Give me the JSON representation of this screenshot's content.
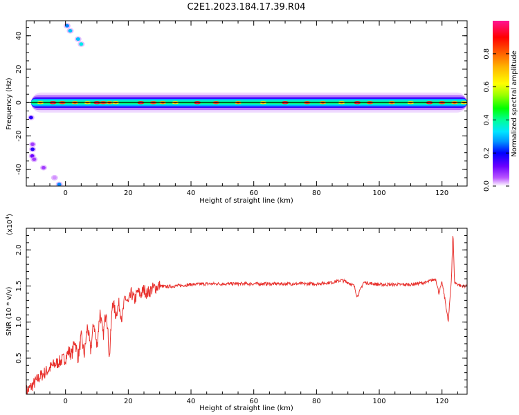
{
  "title": "C2E1.2023.184.17.39.R04",
  "colors": {
    "snr_line": "#e8302c",
    "axis": "#000000",
    "colormap": [
      "#ffffff",
      "#ba55ff",
      "#6a00ff",
      "#0000ff",
      "#0096ff",
      "#00e6ff",
      "#00ff96",
      "#00ff00",
      "#9aff00",
      "#ffff00",
      "#ffb400",
      "#ff5000",
      "#ff0000",
      "#ff1493"
    ]
  },
  "chart_data": [
    {
      "type": "heatmap",
      "xlabel": "Height of straight line (km)",
      "ylabel": "Frequency (Hz)",
      "xlim": [
        -12.5,
        128
      ],
      "ylim": [
        -50,
        49
      ],
      "xticks": [
        "0",
        "20",
        "40",
        "60",
        "80",
        "100",
        "120"
      ],
      "yticks": [
        "-40",
        "-20",
        "0",
        "20",
        "40"
      ],
      "colorbar": {
        "label": "Normalized spectral amplitude",
        "range": [
          0,
          1
        ],
        "ticks": [
          "0.0",
          "0.2",
          "0.4",
          "0.6",
          "0.8"
        ]
      },
      "band_center_hz": 0,
      "hot_spots_km": [
        -8,
        -4,
        -1,
        3,
        7,
        10,
        12,
        14,
        16,
        24,
        28,
        31,
        35,
        42,
        48,
        55,
        63,
        70,
        77,
        82,
        88,
        93,
        97,
        104,
        110,
        116,
        120,
        124,
        127
      ],
      "scatter_blobs": [
        {
          "x": -11,
          "y": -9,
          "v": 0.2
        },
        {
          "x": -10.5,
          "y": -25,
          "v": 0.1
        },
        {
          "x": -10.5,
          "y": -28,
          "v": 0.2
        },
        {
          "x": -10.6,
          "y": -32,
          "v": 0.15
        },
        {
          "x": -10,
          "y": -34,
          "v": 0.1
        },
        {
          "x": -7,
          "y": -39,
          "v": 0.1
        },
        {
          "x": -3.5,
          "y": -45,
          "v": 0.05
        },
        {
          "x": -2,
          "y": -49,
          "v": 0.3
        },
        {
          "x": 0.5,
          "y": 46,
          "v": 0.3
        },
        {
          "x": 1.5,
          "y": 43,
          "v": 0.35
        },
        {
          "x": 4,
          "y": 38,
          "v": 0.35
        },
        {
          "x": 5,
          "y": 35,
          "v": 0.4
        }
      ]
    },
    {
      "type": "line",
      "xlabel": "Height of straight line (km)",
      "ylabel": "SNR (10 * v/v)",
      "yscale_label": "(x10",
      "yscale_exponent": "4",
      "xlim": [
        -12.5,
        128
      ],
      "ylim": [
        0,
        2.3
      ],
      "xticks": [
        "0",
        "20",
        "40",
        "60",
        "80",
        "100",
        "120"
      ],
      "yticks": [
        "0.5",
        "1.0",
        "1.5",
        "2.0"
      ],
      "series": [
        {
          "x": [
            -12,
            -10,
            -8,
            -6,
            -4,
            -2,
            0,
            1,
            2,
            3,
            4,
            5,
            6,
            7,
            8,
            9,
            10,
            11,
            12,
            13,
            14,
            15,
            16,
            17,
            18,
            19,
            20,
            21,
            22,
            23,
            24,
            25,
            26,
            28,
            30,
            32,
            35,
            40,
            45,
            50,
            60,
            70,
            80,
            85,
            88,
            90,
            92,
            93,
            95,
            100,
            110,
            115,
            118,
            119,
            120,
            121,
            122,
            122.5,
            123,
            123.5,
            124,
            126,
            128
          ],
          "y": [
            0.05,
            0.15,
            0.25,
            0.32,
            0.4,
            0.45,
            0.5,
            0.6,
            0.55,
            0.75,
            0.5,
            0.8,
            0.55,
            0.95,
            0.6,
            1.0,
            0.65,
            1.15,
            0.8,
            1.2,
            0.5,
            1.3,
            1.1,
            1.25,
            1.05,
            1.35,
            1.25,
            1.4,
            1.3,
            1.42,
            1.38,
            1.45,
            1.4,
            1.47,
            1.5,
            1.49,
            1.5,
            1.52,
            1.53,
            1.53,
            1.53,
            1.53,
            1.53,
            1.55,
            1.58,
            1.55,
            1.5,
            1.35,
            1.55,
            1.52,
            1.52,
            1.55,
            1.6,
            1.4,
            1.55,
            1.3,
            1.0,
            1.3,
            1.6,
            2.25,
            1.55,
            1.5,
            1.5
          ]
        }
      ]
    }
  ]
}
